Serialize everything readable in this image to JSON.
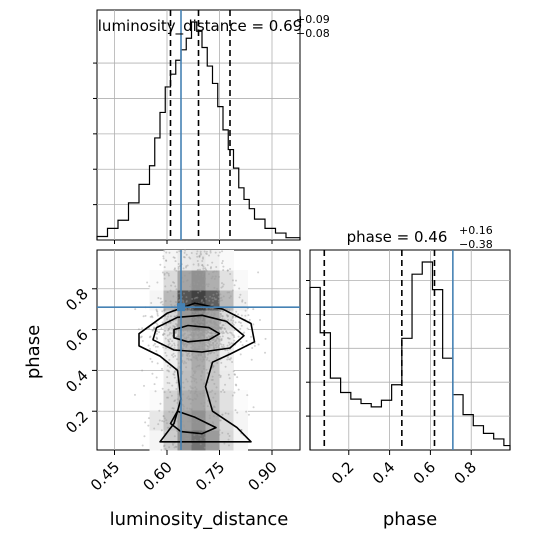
{
  "chart_data": {
    "type": "corner",
    "truth_color": "#4682b4",
    "line_color": "#000000",
    "grid": true,
    "parameters": [
      {
        "name": "luminosity_distance",
        "label": "luminosity_distance",
        "range": [
          0.4,
          0.98
        ],
        "ticks": [
          0.45,
          0.6,
          0.75,
          0.9
        ],
        "tick_labels": [
          "0.45",
          "0.60",
          "0.75",
          "0.90"
        ],
        "truth": 0.64,
        "quantiles": [
          0.61,
          0.69,
          0.78
        ],
        "title_main": "luminosity_distance = 0.69",
        "title_sup": "+0.09",
        "title_sub": "−0.08",
        "hist_edges": [
          0.4,
          0.43,
          0.46,
          0.49,
          0.52,
          0.55,
          0.565,
          0.58,
          0.595,
          0.61,
          0.625,
          0.64,
          0.655,
          0.67,
          0.685,
          0.7,
          0.715,
          0.73,
          0.745,
          0.76,
          0.775,
          0.79,
          0.805,
          0.82,
          0.835,
          0.85,
          0.88,
          0.91,
          0.94,
          0.98
        ],
        "hist_counts": [
          3,
          10,
          17,
          32,
          48,
          64,
          88,
          110,
          132,
          143,
          155,
          164,
          174,
          188,
          180,
          166,
          150,
          135,
          115,
          95,
          78,
          62,
          45,
          35,
          27,
          18,
          10,
          6,
          2
        ]
      },
      {
        "name": "phase",
        "label": "phase",
        "range": [
          0.01,
          0.99
        ],
        "ticks": [
          0.2,
          0.4,
          0.6,
          0.8
        ],
        "tick_labels": [
          "0.2",
          "0.4",
          "0.6",
          "0.8"
        ],
        "truth": 0.71,
        "quantiles": [
          0.08,
          0.46,
          0.62
        ],
        "title_main": "phase = 0.46",
        "title_sup": "+0.16",
        "title_sub": "−0.38",
        "hist_edges": [
          0.01,
          0.06,
          0.11,
          0.16,
          0.21,
          0.26,
          0.31,
          0.36,
          0.41,
          0.46,
          0.51,
          0.56,
          0.61,
          0.66,
          0.71,
          0.76,
          0.81,
          0.86,
          0.91,
          0.96,
          0.99
        ],
        "hist_counts": [
          147,
          106,
          65,
          52,
          46,
          42,
          39,
          45,
          59,
          101,
          159,
          170,
          145,
          83,
          50,
          32,
          22,
          15,
          10,
          4
        ]
      }
    ],
    "hist2d": {
      "density_columns_phase_bins": [
        [
          0.05,
          0.12,
          0.02,
          0.0,
          0.0,
          0.0,
          0.0,
          0.05,
          0.02,
          0.0
        ],
        [
          0.25,
          0.3,
          0.22,
          0.1,
          0.08,
          0.12,
          0.2,
          0.35,
          0.18,
          0.05
        ],
        [
          0.55,
          0.48,
          0.4,
          0.32,
          0.3,
          0.38,
          0.5,
          0.85,
          0.45,
          0.1
        ],
        [
          0.7,
          0.55,
          0.45,
          0.4,
          0.42,
          0.45,
          0.6,
          0.95,
          0.55,
          0.12
        ],
        [
          0.5,
          0.4,
          0.32,
          0.28,
          0.28,
          0.32,
          0.45,
          0.8,
          0.4,
          0.08
        ],
        [
          0.2,
          0.18,
          0.15,
          0.1,
          0.08,
          0.1,
          0.18,
          0.35,
          0.15,
          0.03
        ],
        [
          0.05,
          0.05,
          0.02,
          0.0,
          0.0,
          0.0,
          0.03,
          0.08,
          0.03,
          0.0
        ]
      ],
      "contours": [
        {
          "level": "inner",
          "points": [
            [
              0.62,
              0.6
            ],
            [
              0.66,
              0.62
            ],
            [
              0.72,
              0.61
            ],
            [
              0.75,
              0.58
            ],
            [
              0.72,
              0.55
            ],
            [
              0.66,
              0.54
            ],
            [
              0.62,
              0.56
            ]
          ]
        },
        {
          "level": "mid",
          "points": [
            [
              0.57,
              0.61
            ],
            [
              0.63,
              0.66
            ],
            [
              0.7,
              0.67
            ],
            [
              0.77,
              0.64
            ],
            [
              0.82,
              0.57
            ],
            [
              0.78,
              0.51
            ],
            [
              0.7,
              0.49
            ],
            [
              0.62,
              0.5
            ],
            [
              0.56,
              0.55
            ]
          ]
        },
        {
          "level": "outer",
          "points": [
            [
              0.52,
              0.58
            ],
            [
              0.6,
              0.68
            ],
            [
              0.68,
              0.73
            ],
            [
              0.76,
              0.7
            ],
            [
              0.84,
              0.63
            ],
            [
              0.85,
              0.54
            ],
            [
              0.78,
              0.48
            ],
            [
              0.73,
              0.44
            ],
            [
              0.71,
              0.32
            ],
            [
              0.73,
              0.2
            ],
            [
              0.8,
              0.12
            ],
            [
              0.84,
              0.05
            ],
            [
              0.58,
              0.05
            ],
            [
              0.62,
              0.14
            ],
            [
              0.64,
              0.26
            ],
            [
              0.63,
              0.4
            ],
            [
              0.58,
              0.47
            ],
            [
              0.52,
              0.52
            ]
          ]
        },
        {
          "level": "lower-inner",
          "points": [
            [
              0.63,
              0.2
            ],
            [
              0.68,
              0.17
            ],
            [
              0.74,
              0.12
            ],
            [
              0.7,
              0.09
            ],
            [
              0.64,
              0.1
            ],
            [
              0.61,
              0.14
            ]
          ]
        }
      ],
      "scatter_seed": 7,
      "scatter_count": 1400
    }
  }
}
